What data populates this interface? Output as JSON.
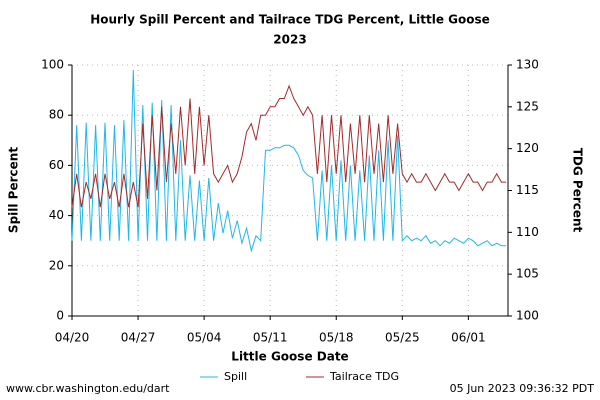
{
  "chart_data": {
    "type": "line",
    "title": [
      "Hourly Spill Percent and Tailrace TDG Percent, Little Goose",
      "2023"
    ],
    "x_label": "Little Goose Date",
    "y_label": "Spill Percent",
    "y2_label": "TDG Percent",
    "source": "www.cbr.washington.edu/dart",
    "timestamp": "05 Jun 2023 09:36:32 PDT",
    "grid": true,
    "legend": "bottom",
    "xlim": [
      0,
      46.2
    ],
    "xticks": [
      {
        "value": 0,
        "label": "04/20"
      },
      {
        "value": 7,
        "label": "04/27"
      },
      {
        "value": 14,
        "label": "05/04"
      },
      {
        "value": 21,
        "label": "05/11"
      },
      {
        "value": 28,
        "label": "05/18"
      },
      {
        "value": 35,
        "label": "05/25"
      },
      {
        "value": 42,
        "label": "06/01"
      }
    ],
    "ylim": [
      0,
      100
    ],
    "yticks": [
      0,
      20,
      40,
      60,
      80,
      100
    ],
    "y2lim": [
      100,
      130
    ],
    "y2ticks": [
      100,
      105,
      110,
      115,
      120,
      125,
      130
    ],
    "x": [
      0,
      0.5,
      1,
      1.5,
      2,
      2.5,
      3,
      3.5,
      4,
      4.5,
      5,
      5.5,
      6,
      6.5,
      7,
      7.5,
      8,
      8.5,
      9,
      9.5,
      10,
      10.5,
      11,
      11.5,
      12,
      12.5,
      13,
      13.5,
      14,
      14.5,
      15,
      15.5,
      16,
      16.5,
      17,
      17.5,
      18,
      18.5,
      19,
      19.5,
      20,
      20.5,
      21,
      21.5,
      22,
      22.5,
      23,
      23.5,
      24,
      24.5,
      25,
      25.5,
      26,
      26.5,
      27,
      27.5,
      28,
      28.5,
      29,
      29.5,
      30,
      30.5,
      31,
      31.5,
      32,
      32.5,
      33,
      33.5,
      34,
      34.5,
      35,
      35.5,
      36,
      36.5,
      37,
      37.5,
      38,
      38.5,
      39,
      39.5,
      40,
      40.5,
      41,
      41.5,
      42,
      42.5,
      43,
      43.5,
      44,
      44.5,
      45,
      45.5,
      46
    ],
    "series": [
      {
        "name": "Spill",
        "color": "#1fb8e8",
        "values": [
          30,
          76,
          30,
          77,
          30,
          76,
          30,
          77,
          30,
          76,
          30,
          78,
          30,
          98,
          30,
          84,
          30,
          85,
          30,
          86,
          30,
          84,
          30,
          70,
          30,
          56,
          30,
          54,
          30,
          55,
          30,
          45,
          33,
          42,
          31,
          38,
          29,
          35,
          26,
          32,
          30,
          66,
          66,
          67,
          67,
          68,
          68,
          67,
          64,
          58,
          56,
          55,
          30,
          58,
          30,
          60,
          30,
          62,
          30,
          60,
          30,
          58,
          30,
          64,
          30,
          66,
          30,
          70,
          30,
          72,
          30,
          32,
          30,
          31,
          30,
          32,
          29,
          30,
          28,
          30,
          29,
          31,
          30,
          29,
          31,
          30,
          28,
          29,
          30,
          28,
          29,
          28,
          28
        ]
      },
      {
        "name": "Tailrace TDG",
        "color": "#a52a2a",
        "axis": "y2",
        "values": [
          113,
          117,
          113,
          116,
          114,
          117,
          113,
          117,
          114,
          116,
          113,
          117,
          113,
          116,
          113,
          123,
          114,
          124,
          115,
          125,
          116,
          123,
          117,
          125,
          118,
          126,
          117,
          125,
          118,
          124,
          117,
          116,
          117,
          118,
          116,
          117,
          119,
          122,
          123,
          121,
          124,
          124,
          125,
          125,
          126,
          126,
          127.5,
          126,
          125,
          124,
          125,
          124,
          117,
          124,
          116,
          124,
          117,
          124,
          116,
          123,
          117,
          124,
          116,
          124,
          117,
          123,
          116,
          124,
          117,
          123,
          117,
          116,
          117,
          116,
          116,
          117,
          116,
          115,
          116,
          117,
          116,
          116,
          115,
          116,
          117,
          116,
          116,
          115,
          116,
          116,
          117,
          116,
          116
        ]
      }
    ]
  }
}
